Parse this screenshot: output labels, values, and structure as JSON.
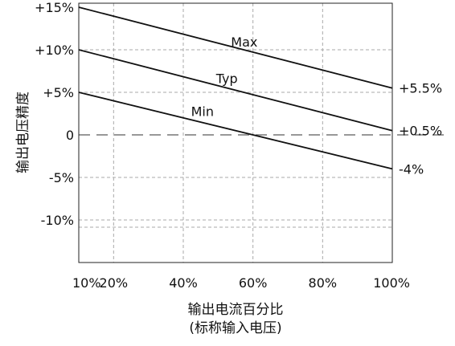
{
  "chart_data": {
    "type": "line",
    "title": "",
    "xlabel": "输出电流百分比",
    "xlabel_sub": "(标称输入电压)",
    "ylabel": "输出电压精度",
    "xlim": [
      10,
      100
    ],
    "ylim": [
      -15,
      15
    ],
    "x_ticks": [
      {
        "value": 10,
        "label": "10%"
      },
      {
        "value": 20,
        "label": "20%"
      },
      {
        "value": 40,
        "label": "40%"
      },
      {
        "value": 60,
        "label": "60%"
      },
      {
        "value": 80,
        "label": "80%"
      },
      {
        "value": 100,
        "label": "100%"
      }
    ],
    "y_ticks": [
      {
        "value": 15,
        "label": "+15%"
      },
      {
        "value": 10,
        "label": "+10%"
      },
      {
        "value": 5,
        "label": "+5%"
      },
      {
        "value": 0,
        "label": "0"
      },
      {
        "value": -5,
        "label": "-5%"
      },
      {
        "value": -10,
        "label": "-10%"
      }
    ],
    "grid": true,
    "zero_line": "dashed",
    "series": [
      {
        "name": "Max",
        "x": [
          10,
          100
        ],
        "y": [
          15,
          5.5
        ],
        "end_label": "+5.5%",
        "label_at": [
          57.5,
          10.4
        ]
      },
      {
        "name": "Typ",
        "x": [
          10,
          100
        ],
        "y": [
          10,
          0.5
        ],
        "end_label": "+0.5%",
        "label_at": [
          52.5,
          6.1
        ]
      },
      {
        "name": "Min",
        "x": [
          10,
          100
        ],
        "y": [
          5,
          -4
        ],
        "end_label": "-4%",
        "label_at": [
          45.5,
          2.2
        ]
      }
    ],
    "colors": {
      "line": "#111111",
      "grid": "#aaaaaa",
      "axis": "#222222"
    }
  }
}
